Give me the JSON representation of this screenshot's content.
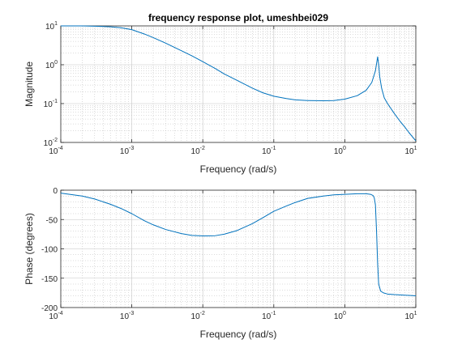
{
  "chart_data": [
    {
      "type": "line",
      "title": "frequency response plot, umeshbei029",
      "xlabel": "Frequency (rad/s)",
      "ylabel": "Magnitude",
      "xscale": "log",
      "yscale": "log",
      "xlim": [
        0.0001,
        10
      ],
      "ylim": [
        0.01,
        10
      ],
      "x_tick_labels": [
        {
          "base": "10",
          "exp": "-4"
        },
        {
          "base": "10",
          "exp": "-3"
        },
        {
          "base": "10",
          "exp": "-2"
        },
        {
          "base": "10",
          "exp": "-1"
        },
        {
          "base": "10",
          "exp": "0"
        },
        {
          "base": "10",
          "exp": "1"
        }
      ],
      "y_tick_labels": [
        {
          "base": "10",
          "exp": "-2"
        },
        {
          "base": "10",
          "exp": "-1"
        },
        {
          "base": "10",
          "exp": "0"
        },
        {
          "base": "10",
          "exp": "1"
        }
      ],
      "grid": true,
      "minor_grid": true,
      "line_color": "#0072BD",
      "series": [
        {
          "x": [
            0.0001,
            0.0002,
            0.0003,
            0.0005,
            0.0007,
            0.001,
            0.0015,
            0.002,
            0.003,
            0.005,
            0.007,
            0.01,
            0.015,
            0.02,
            0.03,
            0.05,
            0.07,
            0.1,
            0.15,
            0.2,
            0.3,
            0.5,
            0.7,
            1,
            1.5,
            2,
            2.4,
            2.7,
            2.9,
            3.0,
            3.1,
            3.3,
            3.6,
            4,
            5,
            6,
            7,
            8,
            10
          ],
          "y": [
            10,
            10,
            9.8,
            9.5,
            9.0,
            8.0,
            6.2,
            5.0,
            3.6,
            2.3,
            1.7,
            1.2,
            0.8,
            0.58,
            0.4,
            0.25,
            0.19,
            0.155,
            0.135,
            0.125,
            0.12,
            0.118,
            0.12,
            0.13,
            0.16,
            0.22,
            0.35,
            0.7,
            1.6,
            1.0,
            0.5,
            0.25,
            0.14,
            0.1,
            0.055,
            0.035,
            0.025,
            0.018,
            0.011
          ]
        }
      ]
    },
    {
      "type": "line",
      "title": "",
      "xlabel": "Frequency (rad/s)",
      "ylabel": "Phase (degrees)",
      "xscale": "log",
      "yscale": "linear",
      "xlim": [
        0.0001,
        10
      ],
      "ylim": [
        -200,
        0
      ],
      "x_tick_labels": [
        {
          "base": "10",
          "exp": "-4"
        },
        {
          "base": "10",
          "exp": "-3"
        },
        {
          "base": "10",
          "exp": "-2"
        },
        {
          "base": "10",
          "exp": "-1"
        },
        {
          "base": "10",
          "exp": "0"
        },
        {
          "base": "10",
          "exp": "1"
        }
      ],
      "y_ticks": [
        0,
        -50,
        -100,
        -150,
        -200
      ],
      "y_tick_labels": [
        "0",
        "-50",
        "-100",
        "-150",
        "-200"
      ],
      "grid": true,
      "minor_grid": true,
      "line_color": "#0072BD",
      "series": [
        {
          "x": [
            0.0001,
            0.0002,
            0.0003,
            0.0005,
            0.0007,
            0.001,
            0.0015,
            0.002,
            0.003,
            0.005,
            0.007,
            0.01,
            0.015,
            0.02,
            0.03,
            0.05,
            0.07,
            0.1,
            0.15,
            0.2,
            0.3,
            0.5,
            0.7,
            1,
            1.5,
            2,
            2.3,
            2.5,
            2.6,
            2.7,
            2.8,
            2.9,
            3.0,
            3.2,
            3.5,
            4,
            5,
            7,
            10
          ],
          "y": [
            -5,
            -10,
            -15,
            -24,
            -31,
            -40,
            -52,
            -59,
            -67,
            -74,
            -77,
            -78,
            -77.5,
            -75,
            -69,
            -57,
            -47,
            -36,
            -27,
            -21,
            -14,
            -10,
            -8,
            -7,
            -6,
            -6,
            -7,
            -9,
            -13,
            -25,
            -70,
            -125,
            -160,
            -172,
            -175,
            -177,
            -178,
            -179,
            -180
          ]
        }
      ]
    }
  ]
}
